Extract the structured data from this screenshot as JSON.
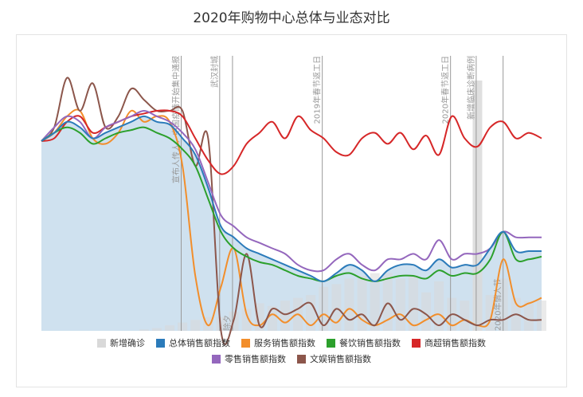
{
  "chart_data": {
    "type": "line",
    "title": "2020年购物中心总体与业态对比",
    "ylim": [
      0,
      100
    ],
    "x_count": 40,
    "bars": {
      "name": "新增确诊",
      "color": "#d9d9d9",
      "values": [
        0,
        0,
        0,
        0,
        0,
        0,
        0,
        0,
        0.5,
        1,
        2,
        3,
        4,
        5,
        5,
        7,
        8,
        10,
        9,
        11,
        12,
        13,
        16,
        17,
        19,
        20,
        21,
        21,
        19,
        20,
        14,
        18,
        12,
        11,
        91,
        13,
        19,
        12,
        11,
        11
      ]
    },
    "series": [
      {
        "name": "总体销售额指数",
        "color": "#2b7bba",
        "values": [
          69,
          72,
          76,
          74,
          70,
          72,
          74,
          76,
          78,
          76,
          75,
          70,
          64,
          52,
          38,
          34,
          30,
          28,
          26,
          24,
          22,
          20,
          18,
          21,
          24,
          22,
          18,
          22,
          24,
          24,
          22,
          26,
          23,
          24,
          24,
          30,
          36,
          29,
          29,
          29
        ]
      },
      {
        "name": "服务销售额指数",
        "color": "#f28e2b",
        "values": [
          69,
          72,
          78,
          80,
          70,
          68,
          72,
          80,
          76,
          78,
          76,
          60,
          20,
          2,
          16,
          30,
          6,
          2,
          6,
          3,
          6,
          2,
          6,
          3,
          8,
          4,
          2,
          4,
          6,
          2,
          4,
          6,
          2,
          4,
          2,
          4,
          26,
          10,
          10,
          12
        ]
      },
      {
        "name": "餐饮销售额指数",
        "color": "#2ca02c",
        "values": [
          69,
          72,
          74,
          72,
          68,
          70,
          72,
          73,
          74,
          72,
          70,
          66,
          60,
          48,
          36,
          30,
          27,
          25,
          24,
          22,
          20,
          19,
          18,
          20,
          21,
          19,
          18,
          19,
          20,
          20,
          19,
          22,
          20,
          21,
          21,
          26,
          36,
          26,
          26,
          27
        ]
      },
      {
        "name": "商超销售额指数",
        "color": "#d62728",
        "values": [
          69,
          70,
          76,
          78,
          72,
          74,
          76,
          78,
          79,
          80,
          80,
          78,
          70,
          62,
          57,
          60,
          68,
          72,
          76,
          70,
          78,
          73,
          70,
          65,
          64,
          70,
          72,
          68,
          72,
          66,
          71,
          64,
          78,
          70,
          67,
          74,
          76,
          70,
          72,
          70
        ]
      },
      {
        "name": "零售销售额指数",
        "color": "#9467bd",
        "values": [
          69,
          74,
          78,
          76,
          70,
          74,
          76,
          78,
          80,
          78,
          76,
          72,
          66,
          54,
          42,
          38,
          34,
          32,
          30,
          28,
          24,
          22,
          22,
          26,
          28,
          24,
          22,
          26,
          26,
          28,
          26,
          33,
          26,
          28,
          28,
          30,
          36,
          34,
          34,
          34
        ]
      },
      {
        "name": "文娱销售额指数",
        "color": "#8c564b",
        "values": [
          69,
          74,
          92,
          80,
          90,
          74,
          78,
          88,
          84,
          80,
          80,
          80,
          60,
          70,
          0,
          4,
          28,
          2,
          8,
          6,
          8,
          10,
          2,
          8,
          4,
          6,
          2,
          10,
          4,
          8,
          6,
          2,
          6,
          4,
          2,
          4,
          4,
          6,
          4,
          4
        ]
      }
    ],
    "annotations": [
      {
        "x": 10.9,
        "text": "宣布人传人，中国疫情开始集中通报",
        "pos": "top"
      },
      {
        "x": 13.9,
        "text": "武汉封城",
        "pos": "top"
      },
      {
        "x": 14.9,
        "text": "除夕",
        "pos": "bottom"
      },
      {
        "x": 21.9,
        "text": "2019年春节返工日",
        "pos": "top"
      },
      {
        "x": 31.9,
        "text": "2020年春节返工日",
        "pos": "top"
      },
      {
        "x": 33.9,
        "text": "新增临床诊断病例",
        "pos": "top"
      },
      {
        "x": 36,
        "text": "2020年情人节",
        "pos": "bottom"
      }
    ],
    "legend_position": "bottom"
  }
}
